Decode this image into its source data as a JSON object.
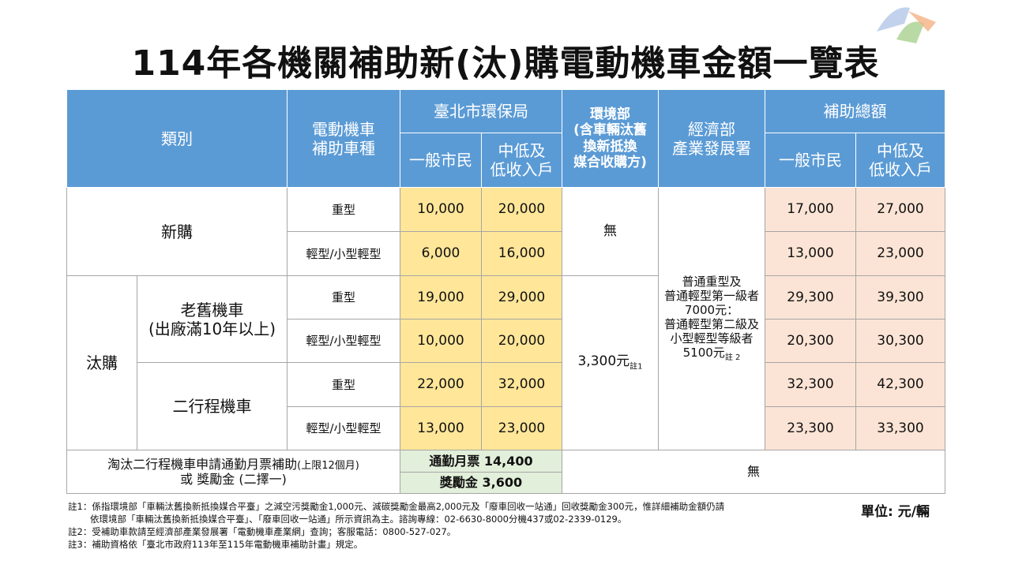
{
  "header": {
    "title": "114年各機關補助新(汰)購電動機車金額一覽表"
  },
  "table": {
    "head": {
      "category": "類別",
      "vehicle": "電動機車\n補助車種",
      "taipei": "臺北市環保局",
      "moenv": "環境部\n(含車輛汰舊\n換新抵換\n媒合收購方)",
      "moea": "經濟部\n產業發展署",
      "total": "補助總額",
      "taipei_general": "一般市民",
      "taipei_low": "中低及\n低收入戶",
      "total_general": "一般市民",
      "total_low": "中低及\n低收入戶"
    },
    "rows": [
      {
        "group": "新購",
        "type": "重型",
        "taipei_general": "10,000",
        "taipei_low": "20,000",
        "moenv": "無",
        "total_general": "17,000",
        "total_low": "27,000"
      },
      {
        "type": "輕型/小型輕型",
        "taipei_general": "6,000",
        "taipei_low": "16,000",
        "total_general": "13,000",
        "total_low": "23,000"
      },
      {
        "group": "汰購",
        "subgroup": "老舊機車\n(出廠滿10年以上)",
        "type": "重型",
        "taipei_general": "19,000",
        "taipei_low": "29,000",
        "moenv": "3,300元",
        "moenv_note": "註1",
        "moea": "普通重型及\n普通輕型第一級者\n7000元：\n普通輕型第二級及\n小型輕型等級者\n5100元",
        "moea_note": "註 2",
        "total_general": "29,300",
        "total_low": "39,300"
      },
      {
        "type": "輕型/小型輕型",
        "taipei_general": "10,000",
        "taipei_low": "20,000",
        "total_general": "20,300",
        "total_low": "30,300"
      },
      {
        "subgroup": "二行程機車",
        "type": "重型",
        "taipei_general": "22,000",
        "taipei_low": "32,000",
        "total_general": "32,300",
        "total_low": "42,300"
      },
      {
        "type": "輕型/小型輕型",
        "taipei_general": "13,000",
        "taipei_low": "23,000",
        "total_general": "23,300",
        "total_low": "33,300"
      }
    ],
    "extra": {
      "label": "淘汰二行程機車申請通勤月票補助",
      "label_small": "(上限12個月)",
      "label2": "或 獎勵金 (二擇一)",
      "pass": "通勤月票 14,400",
      "bonus": "獎勵金 3,600",
      "others": "無"
    }
  },
  "unit": "單位: 元/輛",
  "notes": [
    "註1：係指環境部「車輛汰舊換新抵換媒合平臺」之減空污獎勵金1,000元、減碳獎勵金最高2,000元及「廢車回收一站通」回收獎勵金300元，惟詳細補助金額仍請",
    "依環境部「車輛汰舊換新抵換媒合平臺」、「廢車回收一站通」所示資訊為主。諮詢專線：02-6630-8000分機437或02-2339-0129。",
    "註2：受補助車款請至經濟部產業發展署「電動機車產業網」查詢；客服電話：0800-527-027。",
    "註3：補助資格依「臺北市政府113年至115年電動機車補助計畫」規定。"
  ]
}
